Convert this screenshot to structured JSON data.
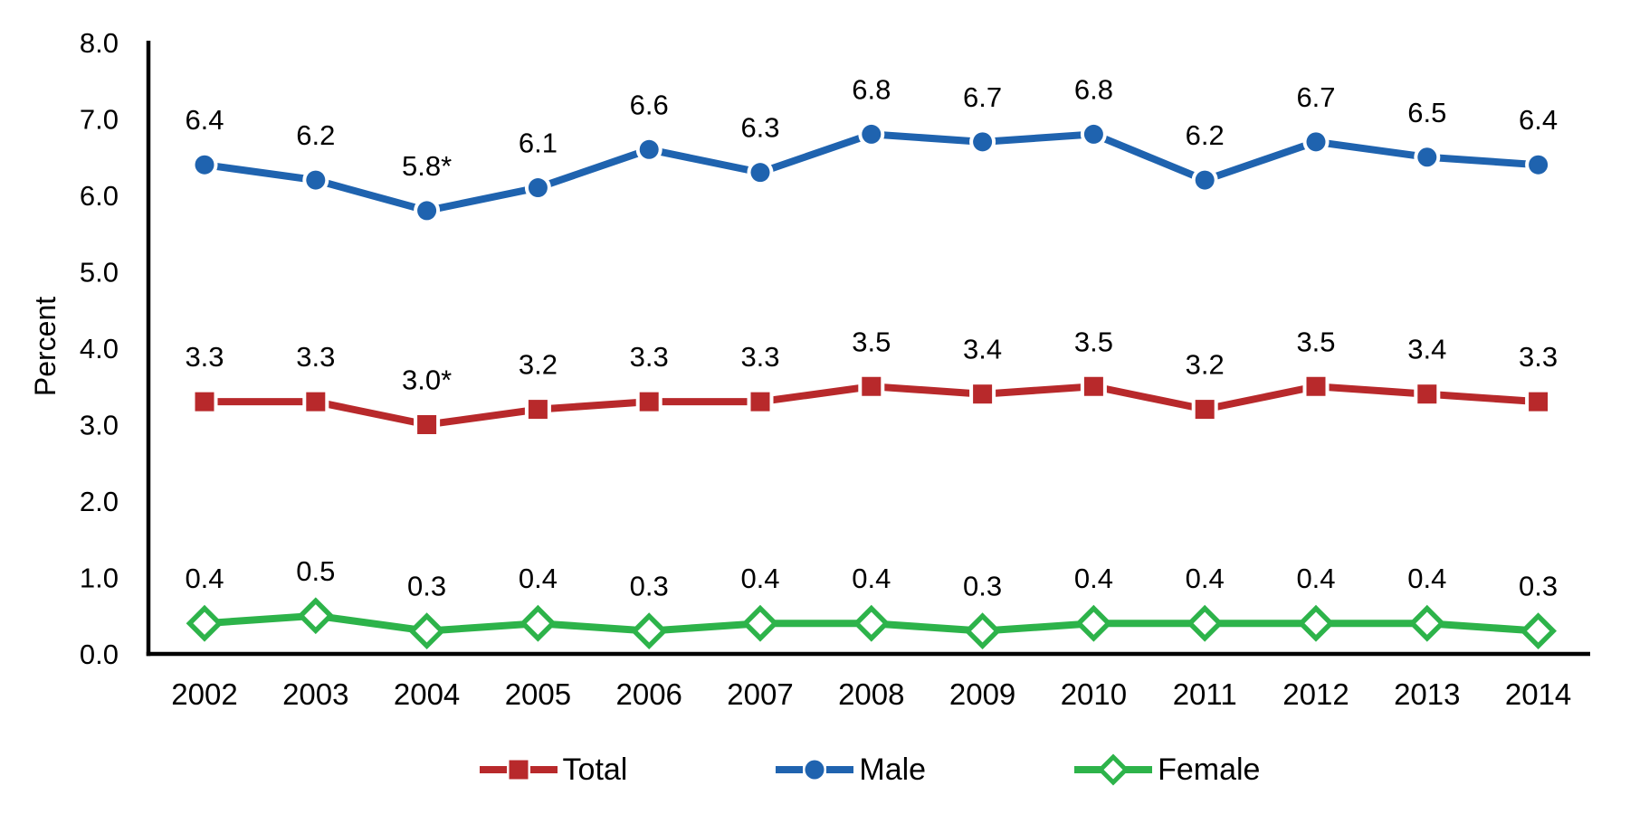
{
  "chart_data": {
    "type": "line",
    "title": "",
    "xlabel": "",
    "ylabel": "Percent",
    "ylim": [
      0.0,
      8.0
    ],
    "ytick_labels": [
      "8.0",
      "7.0",
      "6.0",
      "5.0",
      "4.0",
      "3.0",
      "2.0",
      "1.0",
      "0.0"
    ],
    "categories": [
      "2002",
      "2003",
      "2004",
      "2005",
      "2006",
      "2007",
      "2008",
      "2009",
      "2010",
      "2011",
      "2012",
      "2013",
      "2014"
    ],
    "series": [
      {
        "name": "Total",
        "marker": "filled-square",
        "color": "#B8292B",
        "values": [
          3.3,
          3.3,
          3.0,
          3.2,
          3.3,
          3.3,
          3.5,
          3.4,
          3.5,
          3.2,
          3.5,
          3.4,
          3.3
        ],
        "point_labels": [
          "3.3",
          "3.3",
          "3.0*",
          "3.2",
          "3.3",
          "3.3",
          "3.5",
          "3.4",
          "3.5",
          "3.2",
          "3.5",
          "3.4",
          "3.3"
        ]
      },
      {
        "name": "Male",
        "marker": "filled-circle",
        "color": "#1F63AF",
        "values": [
          6.4,
          6.2,
          5.8,
          6.1,
          6.6,
          6.3,
          6.8,
          6.7,
          6.8,
          6.2,
          6.7,
          6.5,
          6.4
        ],
        "point_labels": [
          "6.4",
          "6.2",
          "5.8*",
          "6.1",
          "6.6",
          "6.3",
          "6.8",
          "6.7",
          "6.8",
          "6.2",
          "6.7",
          "6.5",
          "6.4"
        ]
      },
      {
        "name": "Female",
        "marker": "open-diamond",
        "color": "#2DB34A",
        "values": [
          0.4,
          0.5,
          0.3,
          0.4,
          0.3,
          0.4,
          0.4,
          0.3,
          0.4,
          0.4,
          0.4,
          0.4,
          0.3
        ],
        "point_labels": [
          "0.4",
          "0.5",
          "0.3",
          "0.4",
          "0.3",
          "0.4",
          "0.4",
          "0.3",
          "0.4",
          "0.4",
          "0.4",
          "0.4",
          "0.3"
        ]
      }
    ],
    "legend": {
      "position": "bottom",
      "entries": [
        "Total",
        "Male",
        "Female"
      ]
    },
    "grid": false,
    "axis_color": "#000000",
    "text_color": "#000000",
    "background_color": "#FFFFFF"
  }
}
